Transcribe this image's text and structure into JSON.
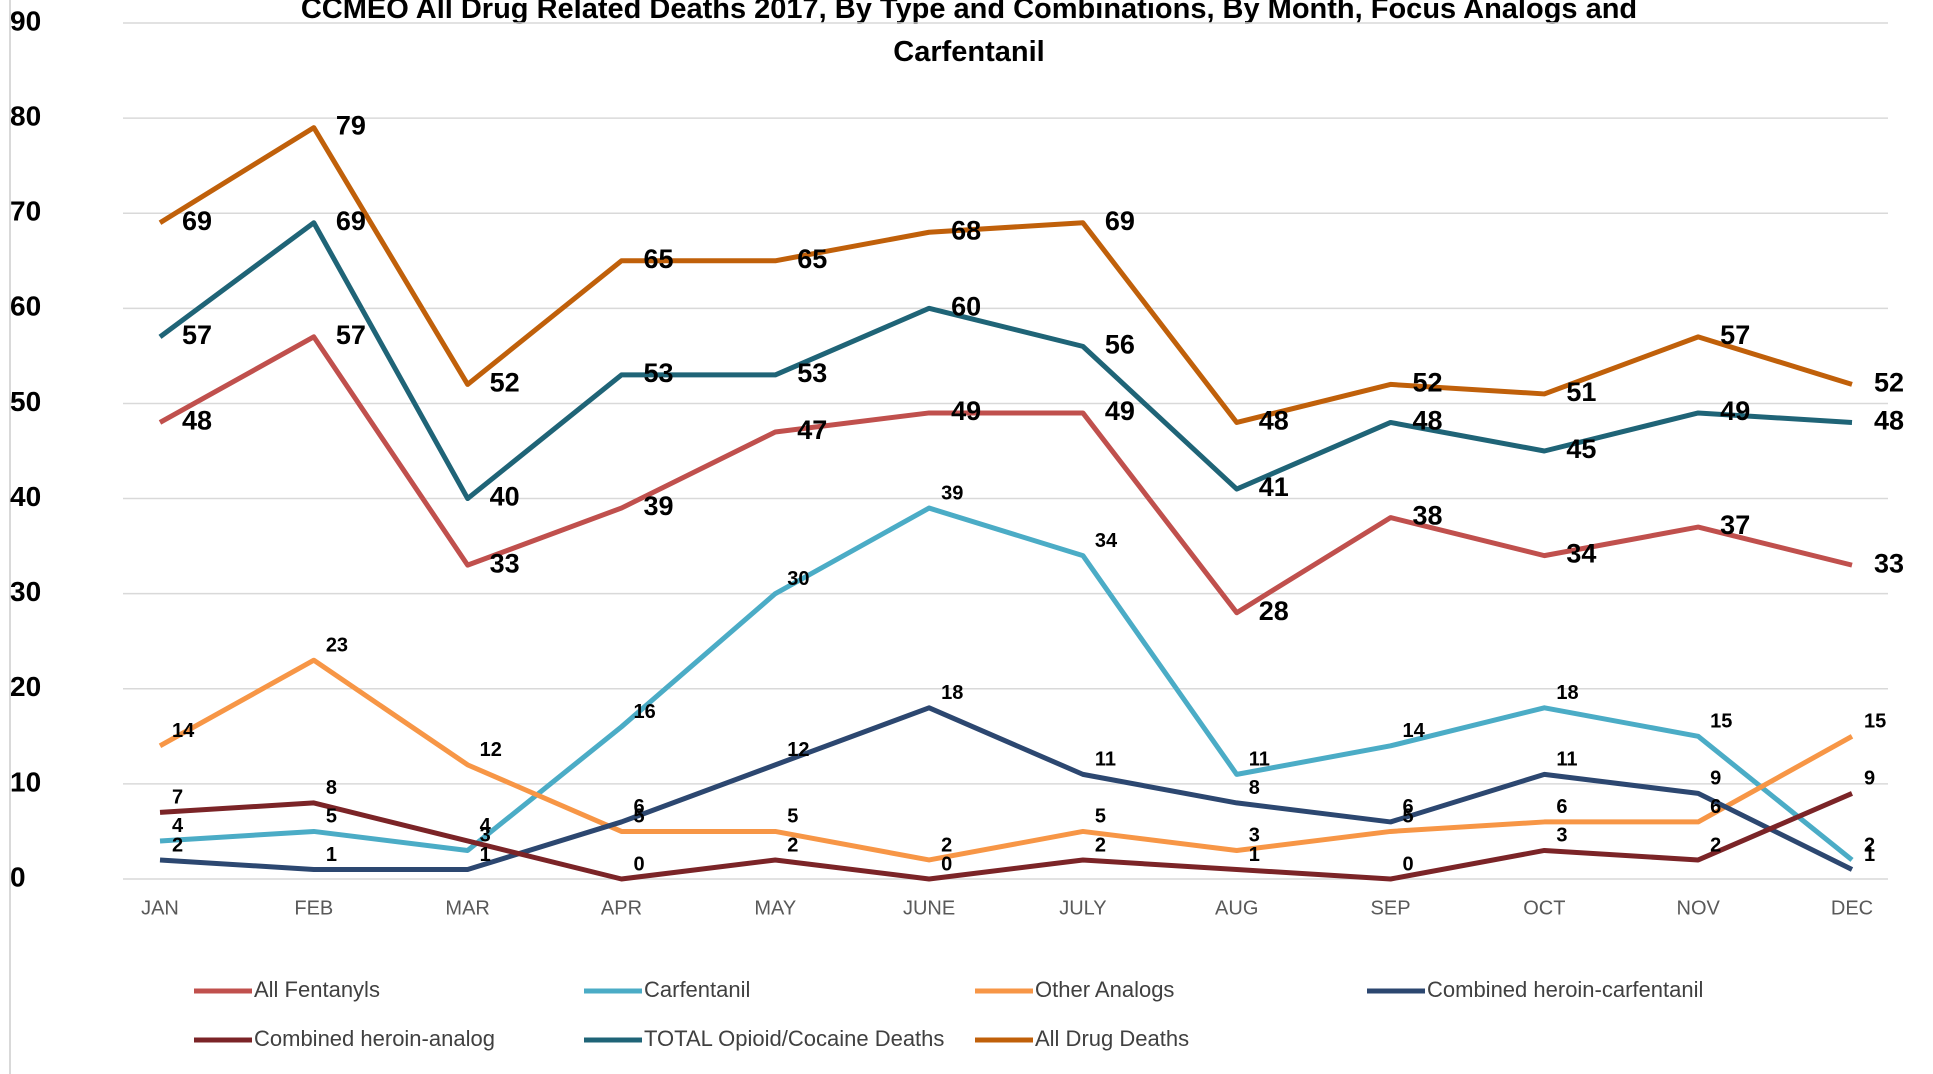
{
  "chart_data": {
    "type": "line",
    "title": "CCMEO All Drug Related Deaths 2017, By Type and Combinations, By Month, Focus Analogs and Carfentanil",
    "categories": [
      "JAN",
      "FEB",
      "MAR",
      "APR",
      "MAY",
      "JUNE",
      "JULY",
      "AUG",
      "SEP",
      "OCT",
      "NOV",
      "DEC"
    ],
    "ylim": [
      0,
      90
    ],
    "yticks": [
      0,
      10,
      20,
      30,
      40,
      50,
      60,
      70,
      80,
      90
    ],
    "grid": true,
    "legend": "bottom",
    "series": [
      {
        "name": "All Fentanyls",
        "color": "#c0504d",
        "values": [
          48,
          57,
          33,
          39,
          47,
          49,
          49,
          28,
          38,
          34,
          37,
          33
        ]
      },
      {
        "name": "Carfentanil",
        "color": "#4bacc6",
        "values": [
          4,
          5,
          3,
          16,
          30,
          39,
          34,
          11,
          14,
          18,
          15,
          2
        ]
      },
      {
        "name": "Other Analogs",
        "color": "#f79646",
        "values": [
          14,
          23,
          12,
          5,
          5,
          2,
          5,
          3,
          5,
          6,
          6,
          15
        ]
      },
      {
        "name": "Combined heroin-carfentanil",
        "color": "#2c4770",
        "values": [
          2,
          1,
          1,
          6,
          12,
          18,
          11,
          8,
          6,
          11,
          9,
          1
        ]
      },
      {
        "name": "Combined heroin-analog",
        "color": "#7b2427",
        "values": [
          7,
          8,
          4,
          0,
          2,
          0,
          2,
          1,
          0,
          3,
          2,
          9
        ]
      },
      {
        "name": "TOTAL Opioid/Cocaine Deaths",
        "color": "#1f6477",
        "values": [
          57,
          69,
          40,
          53,
          53,
          60,
          56,
          41,
          48,
          45,
          49,
          48
        ]
      },
      {
        "name": "All Drug Deaths",
        "color": "#c0600a",
        "values": [
          69,
          79,
          52,
          65,
          65,
          68,
          69,
          48,
          52,
          51,
          57,
          52
        ]
      }
    ]
  }
}
